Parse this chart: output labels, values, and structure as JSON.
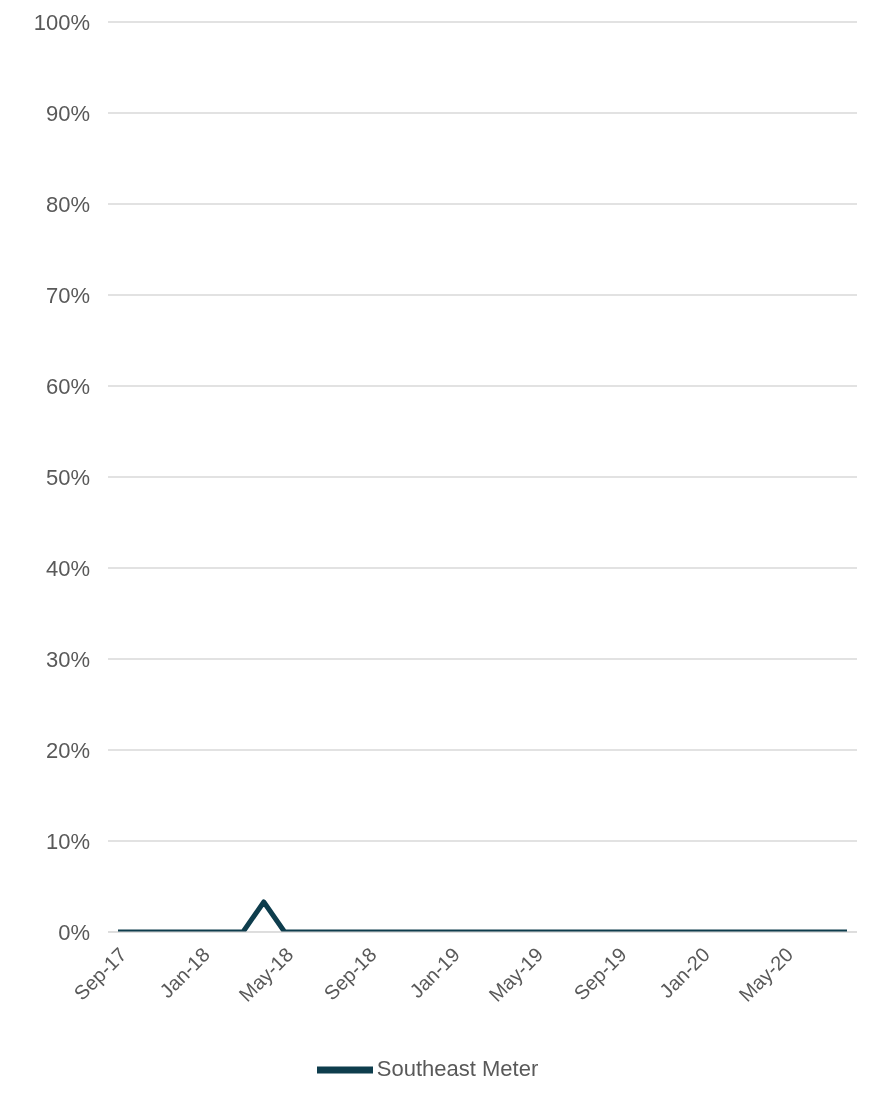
{
  "chart_data": {
    "type": "line",
    "categories": [
      "Sep-17",
      null,
      null,
      null,
      "Jan-18",
      null,
      null,
      null,
      "May-18",
      null,
      null,
      null,
      "Sep-18",
      null,
      null,
      null,
      "Jan-19",
      null,
      null,
      null,
      "May-19",
      null,
      null,
      null,
      "Sep-19",
      null,
      null,
      null,
      "Jan-20",
      null,
      null,
      null,
      "May-20",
      null,
      null,
      null
    ],
    "series": [
      {
        "name": "Southeast Meter",
        "color": "#0e3d4d",
        "values": [
          0,
          0,
          0,
          0,
          0,
          0,
          0,
          3.3,
          0,
          0,
          0,
          0,
          0,
          0,
          0,
          0,
          0,
          0,
          0,
          0,
          0,
          0,
          0,
          0,
          0,
          0,
          0,
          0,
          0,
          0,
          0,
          0,
          0,
          0,
          0,
          0
        ]
      }
    ],
    "ylim": [
      0,
      100
    ],
    "yticks": [
      {
        "value": 0,
        "label": "0%"
      },
      {
        "value": 10,
        "label": "10%"
      },
      {
        "value": 20,
        "label": "20%"
      },
      {
        "value": 30,
        "label": "30%"
      },
      {
        "value": 40,
        "label": "40%"
      },
      {
        "value": 50,
        "label": "50%"
      },
      {
        "value": 60,
        "label": "60%"
      },
      {
        "value": 70,
        "label": "70%"
      },
      {
        "value": 80,
        "label": "80%"
      },
      {
        "value": 90,
        "label": "90%"
      },
      {
        "value": 100,
        "label": "100%"
      }
    ],
    "grid": "y",
    "legend": "bottom",
    "marker": "none",
    "line_style": "solid"
  }
}
